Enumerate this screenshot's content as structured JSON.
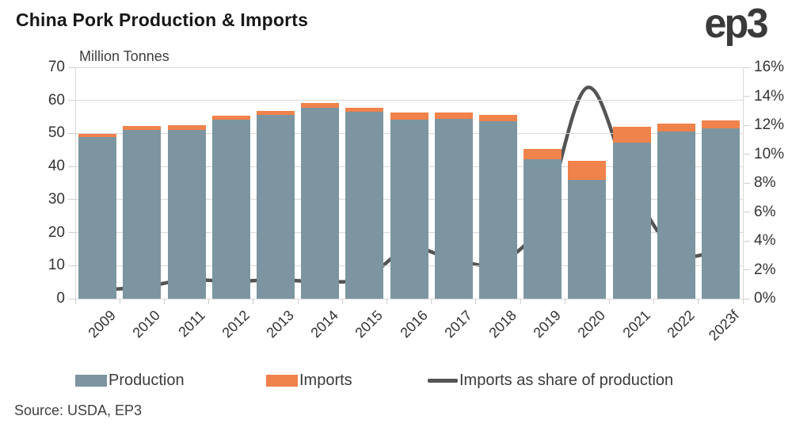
{
  "header": {
    "title": "China Pork Production & Imports",
    "logo_text": "ep3"
  },
  "footer": {
    "source": "Source: USDA, EP3"
  },
  "legend": {
    "production_label": "Production",
    "imports_label": "Imports",
    "share_label": "Imports as share of production"
  },
  "chart_data": {
    "type": "bar",
    "subtype": "stacked-bar-with-line",
    "title": "China Pork Production & Imports",
    "ylabel_left": "Million Tonnes",
    "ylabel_right": "",
    "xlabel": "",
    "grid": true,
    "legend_position": "bottom",
    "categories": [
      "2009",
      "2010",
      "2011",
      "2012",
      "2013",
      "2014",
      "2015",
      "2016",
      "2017",
      "2018",
      "2019",
      "2020",
      "2021",
      "2022",
      "2023f"
    ],
    "series": [
      {
        "name": "Production",
        "type": "bar",
        "stack": true,
        "axis": "left",
        "color": "#7D95A1",
        "values": [
          49.0,
          51.1,
          51.0,
          54.2,
          55.6,
          57.8,
          56.6,
          54.2,
          54.4,
          53.8,
          42.2,
          36.0,
          47.2,
          50.6,
          51.6
        ]
      },
      {
        "name": "Imports",
        "type": "bar",
        "stack": true,
        "axis": "left",
        "color": "#F0824B",
        "values": [
          0.9,
          1.1,
          1.4,
          1.2,
          1.3,
          1.4,
          1.2,
          2.2,
          1.9,
          1.7,
          3.0,
          5.7,
          4.8,
          2.4,
          2.4
        ]
      },
      {
        "name": "Imports as share of production",
        "type": "line",
        "axis": "right",
        "color": "#545454",
        "values_pct": [
          0.6,
          0.8,
          1.3,
          1.2,
          1.3,
          1.2,
          1.4,
          3.5,
          2.7,
          2.5,
          5.5,
          14.6,
          7.8,
          3.2,
          3.4
        ]
      }
    ],
    "y_left_axis": {
      "min": 0,
      "max": 70,
      "step": 10,
      "tick_labels": [
        "0",
        "10",
        "20",
        "30",
        "40",
        "50",
        "60",
        "70"
      ]
    },
    "y_right_axis": {
      "min": 0,
      "max": 16,
      "step": 2,
      "tick_labels": [
        "0%",
        "2%",
        "4%",
        "6%",
        "8%",
        "10%",
        "12%",
        "14%",
        "16%"
      ]
    },
    "colors": {
      "grid": "#d9d9d9",
      "tick": "#cfcfcf",
      "axis_text": "#333333",
      "title_text": "#171717",
      "logo_text": "#3a3a3a"
    }
  }
}
